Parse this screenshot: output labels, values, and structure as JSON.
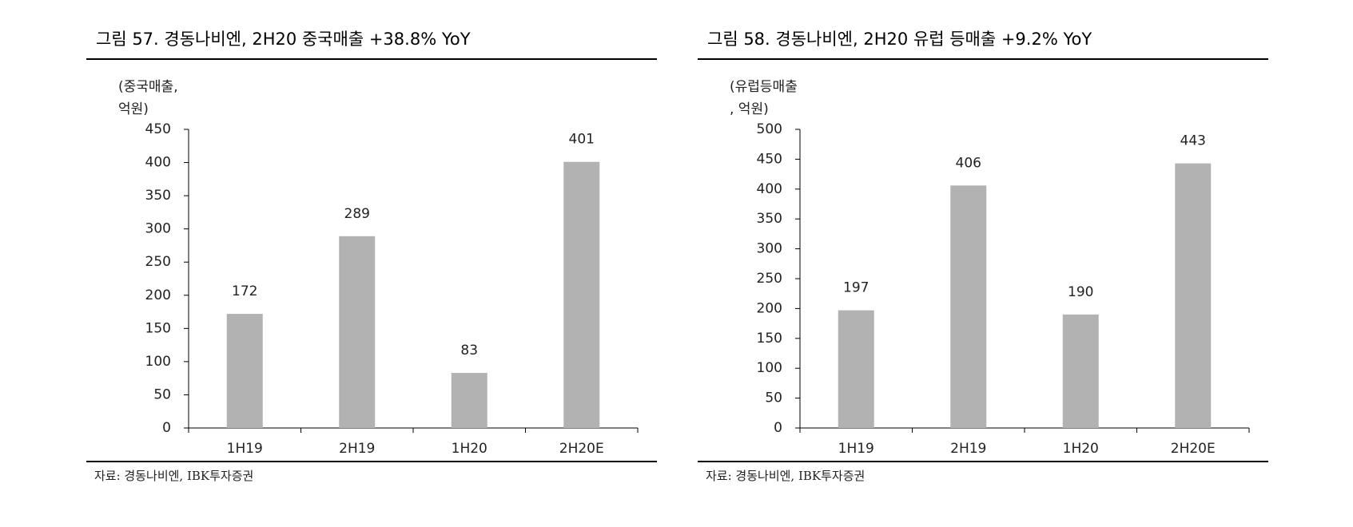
{
  "chart_data": [
    {
      "type": "bar",
      "title": "그림 57. 경동나비엔, 2H20 중국매출 +38.8% YoY",
      "ylabel_lines": [
        "(중국매출,",
        "억원)"
      ],
      "categories": [
        "1H19",
        "2H19",
        "1H20",
        "2H20E"
      ],
      "values": [
        172,
        289,
        83,
        401
      ],
      "color": "#b2b2b2",
      "ylim": [
        0,
        450
      ],
      "yticks": [
        0,
        50,
        100,
        150,
        200,
        250,
        300,
        350,
        400,
        450
      ],
      "source": "자료: 경동나비엔, IBK투자증권"
    },
    {
      "type": "bar",
      "title": "그림 58. 경동나비엔, 2H20 유럽 등매출 +9.2% YoY",
      "ylabel_lines": [
        "(유럽등매출",
        ", 억원)"
      ],
      "categories": [
        "1H19",
        "2H19",
        "1H20",
        "2H20E"
      ],
      "values": [
        197,
        406,
        190,
        443
      ],
      "color": "#b2b2b2",
      "ylim": [
        0,
        500
      ],
      "yticks": [
        0,
        50,
        100,
        150,
        200,
        250,
        300,
        350,
        400,
        450,
        500
      ],
      "source": "자료: 경동나비엔, IBK투자증권"
    }
  ]
}
